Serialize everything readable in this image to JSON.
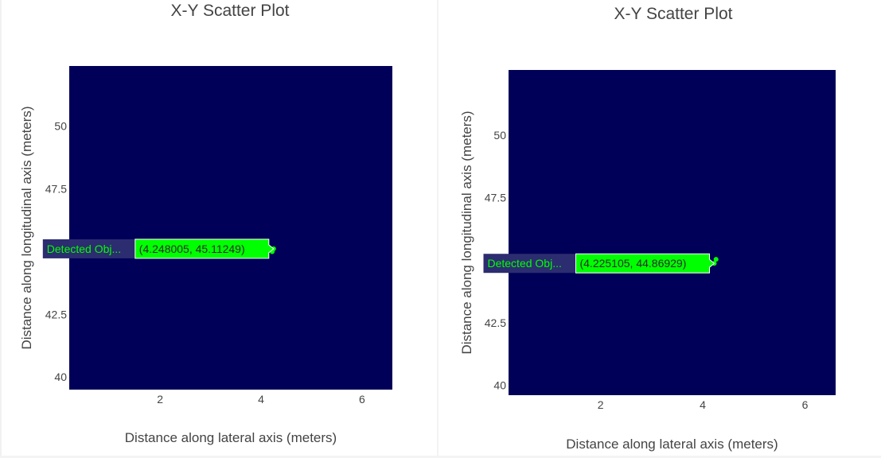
{
  "colors": {
    "plot_bg": "#000058",
    "point": "#00ff00",
    "hover_name_bg": "#2c2c70",
    "hover_value_bg": "#00ff00",
    "hover_value_text": "#2a2a2a",
    "text": "#444444"
  },
  "chart_data": [
    {
      "type": "scatter",
      "title": "X-Y Scatter Plot",
      "xlabel": "Distance along lateral axis (meters)",
      "ylabel": "Distance along longitudinal axis (meters)",
      "xlim": [
        0.2,
        6.6
      ],
      "ylim": [
        39.5,
        52.4
      ],
      "xticks": [
        2,
        4,
        6
      ],
      "yticks": [
        40,
        42.5,
        45,
        47.5,
        50
      ],
      "ytick_labels": [
        "40",
        "42.5",
        "45",
        "47.5",
        "50"
      ],
      "grid": false,
      "series": [
        {
          "name": "Detected Obj...",
          "x": [
            4.248005,
            4.22
          ],
          "y": [
            45.11249,
            45.0
          ]
        }
      ],
      "hover": {
        "name": "Detected Obj...",
        "value": "(4.248005, 45.11249)",
        "x": 4.248005,
        "y": 45.11249
      }
    },
    {
      "type": "scatter",
      "title": "X-Y Scatter Plot",
      "xlabel": "Distance along lateral axis (meters)",
      "ylabel": "Distance along longitudinal axis (meters)",
      "xlim": [
        0.2,
        6.6
      ],
      "ylim": [
        39.6,
        52.6
      ],
      "xticks": [
        2,
        4,
        6
      ],
      "yticks": [
        40,
        42.5,
        45,
        47.5,
        50
      ],
      "ytick_labels": [
        "40",
        "42.5",
        "45",
        "47.5",
        "50"
      ],
      "grid": false,
      "series": [
        {
          "name": "Detected Obj...",
          "x": [
            4.225105,
            4.26
          ],
          "y": [
            44.86929,
            45.03
          ]
        }
      ],
      "hover": {
        "name": "Detected Obj...",
        "value": "(4.225105, 44.86929)",
        "x": 4.225105,
        "y": 44.86929
      }
    }
  ]
}
